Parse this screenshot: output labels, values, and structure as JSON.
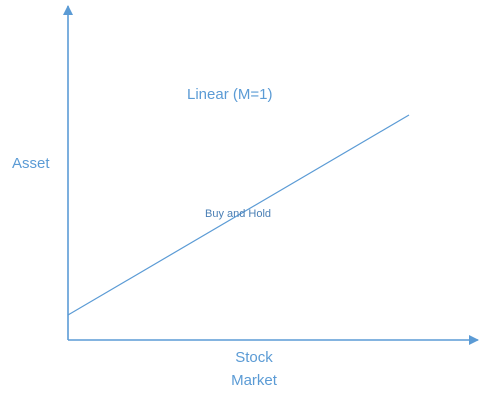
{
  "diagram": {
    "title": "Linear (M=1)",
    "y_axis_label": "Asset",
    "x_axis_label_line1": "Stock",
    "x_axis_label_line2": "Market",
    "line_label": "Buy and Hold",
    "line_color": "#5b9bd5",
    "axis_color": "#5b9bd5",
    "slope": 1
  }
}
